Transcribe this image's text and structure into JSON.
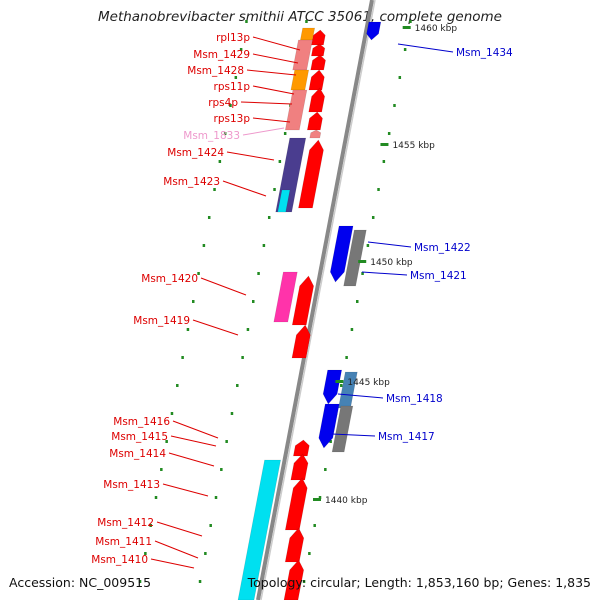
{
  "title": "Methanobrevibacter smithii ATCC 35061, complete genome",
  "footer": {
    "accession": "Accession: NC_009515",
    "topology": "Topology: circular; Length: 1,853,160 bp; Genes: 1,835"
  },
  "scale_labels": [
    "1460 kbp",
    "1455 kbp",
    "1450 kbp",
    "1445 kbp",
    "1440 kbp"
  ],
  "colors": {
    "forward_label": "#dd0000",
    "reverse_label": "#0000cc",
    "rna_label": "#ee99cc",
    "forward_cds": "#ff0000",
    "reverse_cds": "#0000ee",
    "cyan_feature": "#00e0f0",
    "purple_feature": "#4a3d8f",
    "pink_feature": "#ff33aa",
    "orange_feature": "#ff9900",
    "salmon_feature": "#f08080",
    "grey_feature": "#777777",
    "steel_feature": "#4682b4",
    "backbone": "#888888",
    "tick": "#228b22"
  },
  "gene_labels": [
    {
      "name": "Msm_1434",
      "strand": "reverse"
    },
    {
      "name": "rpl13p",
      "strand": "forward"
    },
    {
      "name": "Msm_1429",
      "strand": "forward"
    },
    {
      "name": "Msm_1428",
      "strand": "forward"
    },
    {
      "name": "rps11p",
      "strand": "forward"
    },
    {
      "name": "rps4p",
      "strand": "forward"
    },
    {
      "name": "rps13p",
      "strand": "forward"
    },
    {
      "name": "Msm_1833",
      "strand": "rna"
    },
    {
      "name": "Msm_1424",
      "strand": "forward"
    },
    {
      "name": "Msm_1423",
      "strand": "forward"
    },
    {
      "name": "Msm_1422",
      "strand": "reverse"
    },
    {
      "name": "Msm_1421",
      "strand": "reverse"
    },
    {
      "name": "Msm_1420",
      "strand": "forward"
    },
    {
      "name": "Msm_1419",
      "strand": "forward"
    },
    {
      "name": "Msm_1418",
      "strand": "reverse"
    },
    {
      "name": "Msm_1417",
      "strand": "reverse"
    },
    {
      "name": "Msm_1416",
      "strand": "forward"
    },
    {
      "name": "Msm_1415",
      "strand": "forward"
    },
    {
      "name": "Msm_1414",
      "strand": "forward"
    },
    {
      "name": "Msm_1413",
      "strand": "forward"
    },
    {
      "name": "Msm_1412",
      "strand": "forward"
    },
    {
      "name": "Msm_1411",
      "strand": "forward"
    },
    {
      "name": "Msm_1410",
      "strand": "forward"
    }
  ]
}
